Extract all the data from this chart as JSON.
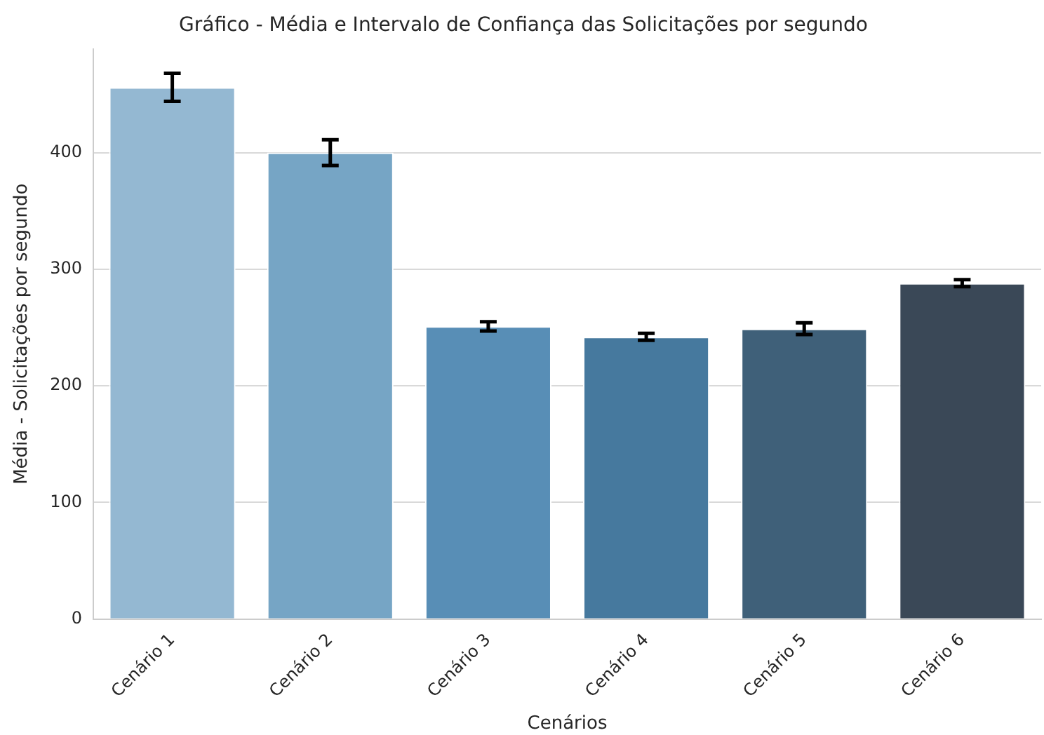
{
  "chart_data": {
    "type": "bar",
    "title": "Gráfico - Média e Intervalo de Confiança das Solicitações por segundo",
    "xlabel": "Cenários",
    "ylabel": "Média - Solicitações por segundo",
    "categories": [
      "Cenário 1",
      "Cenário 2",
      "Cenário 3",
      "Cenário 4",
      "Cenário 5",
      "Cenário 6"
    ],
    "values": [
      456,
      400,
      251,
      242,
      249,
      288
    ],
    "errors": [
      12,
      11,
      4,
      3,
      5,
      3
    ],
    "colors": [
      "#94b8d2",
      "#76a5c5",
      "#588eb6",
      "#46799e",
      "#3f6079",
      "#3a4857"
    ],
    "ylim": [
      0,
      489
    ],
    "yticks": [
      0,
      100,
      200,
      300,
      400
    ],
    "grid": "y"
  }
}
